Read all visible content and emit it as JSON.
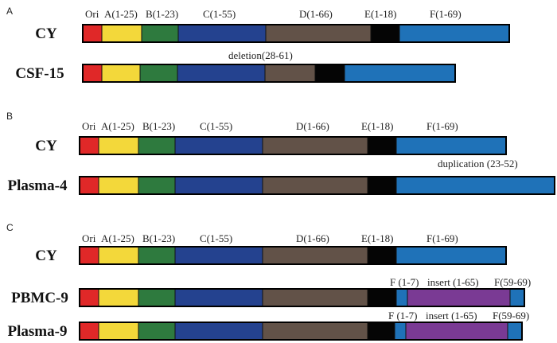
{
  "colors": {
    "Ori": "#e02828",
    "A": "#f3d83a",
    "B": "#2e7a3e",
    "C": "#24428f",
    "D": "#625248",
    "E": "#050505",
    "F": "#1f72b8",
    "insert": "#7a3a94"
  },
  "segment_labels": {
    "Ori": "Ori",
    "A": "A(1-25)",
    "B": "B(1-23)",
    "C": "C(1-55)",
    "D": "D(1-66)",
    "E": "E(1-18)",
    "F": "F(1-69)"
  },
  "panels": [
    {
      "letter": "A",
      "rows": [
        {
          "name": "CY",
          "segments": [
            "Ori",
            "A",
            "B",
            "C",
            "D",
            "E",
            "F"
          ]
        },
        {
          "name": "CSF-15",
          "annotation": "deletion(28-61)",
          "segments": [
            "Ori",
            "A",
            "B",
            "C",
            "D",
            "E",
            "F"
          ]
        }
      ]
    },
    {
      "letter": "B",
      "rows": [
        {
          "name": "CY",
          "segments": [
            "Ori",
            "A",
            "B",
            "C",
            "D",
            "E",
            "F"
          ]
        },
        {
          "name": "Plasma-4",
          "annotation": "duplication (23-52)",
          "segments": [
            "Ori",
            "A",
            "B",
            "C",
            "D",
            "E",
            "F"
          ]
        }
      ]
    },
    {
      "letter": "C",
      "rows": [
        {
          "name": "CY",
          "segments": [
            "Ori",
            "A",
            "B",
            "C",
            "D",
            "E",
            "F"
          ]
        },
        {
          "name": "PBMC-9",
          "annotations": [
            "F (1-7)",
            "insert (1-65)",
            "F(59-69)"
          ],
          "segments": [
            "Ori",
            "A",
            "B",
            "C",
            "D",
            "E",
            "F",
            "insert",
            "F"
          ]
        },
        {
          "name": "Plasma-9",
          "annotations": [
            "F (1-7)",
            "insert (1-65)",
            "F(59-69)"
          ],
          "segments": [
            "Ori",
            "A",
            "B",
            "C",
            "D",
            "E",
            "F",
            "insert",
            "F"
          ]
        }
      ]
    }
  ]
}
